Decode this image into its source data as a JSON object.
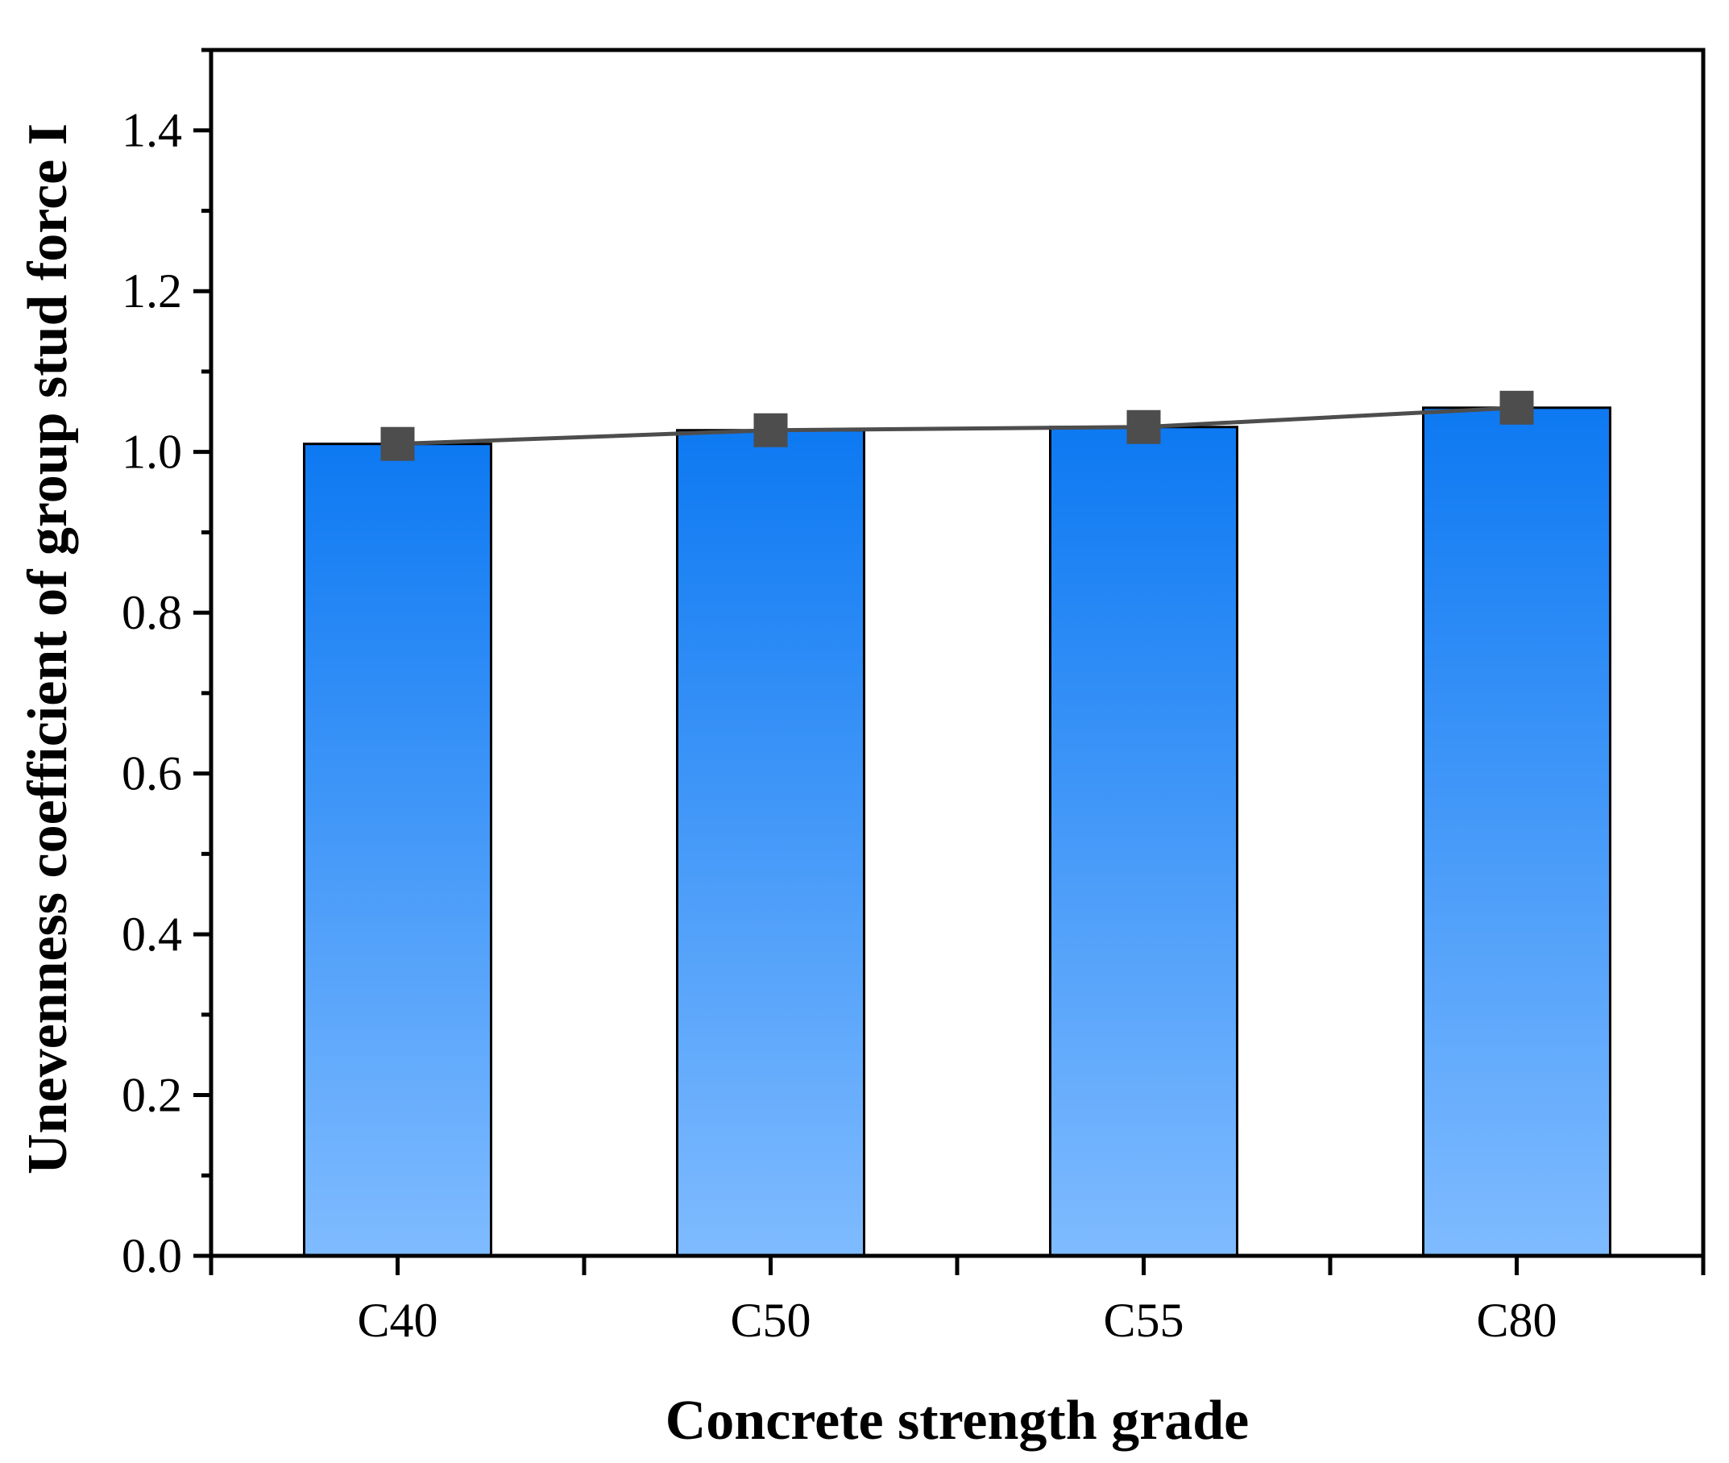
{
  "chart_data": {
    "type": "bar",
    "title": "",
    "xlabel": "Concrete strength grade",
    "ylabel": "Unevenness coefficient of group stud force I",
    "categories": [
      "C40",
      "C50",
      "C55",
      "C80"
    ],
    "series": [
      {
        "name": "bar",
        "type": "bar",
        "values": [
          1.01,
          1.027,
          1.031,
          1.055
        ]
      },
      {
        "name": "line",
        "type": "line",
        "marker": "square",
        "values": [
          1.01,
          1.027,
          1.031,
          1.055
        ]
      }
    ],
    "ylim": [
      0,
      1.5
    ],
    "yticks": [
      "0.0",
      "0.2",
      "0.4",
      "0.6",
      "0.8",
      "1.0",
      "1.2",
      "1.4"
    ],
    "yticks_values": [
      0,
      0.2,
      0.4,
      0.6,
      0.8,
      1.0,
      1.2,
      1.4
    ],
    "grid": false,
    "legend": "none",
    "colors": {
      "bar_top": "#0d79f2",
      "bar_bottom": "#7fbbff",
      "line": "#4d4d4d",
      "marker": "#4d4d4d",
      "axis": "#000000"
    }
  }
}
